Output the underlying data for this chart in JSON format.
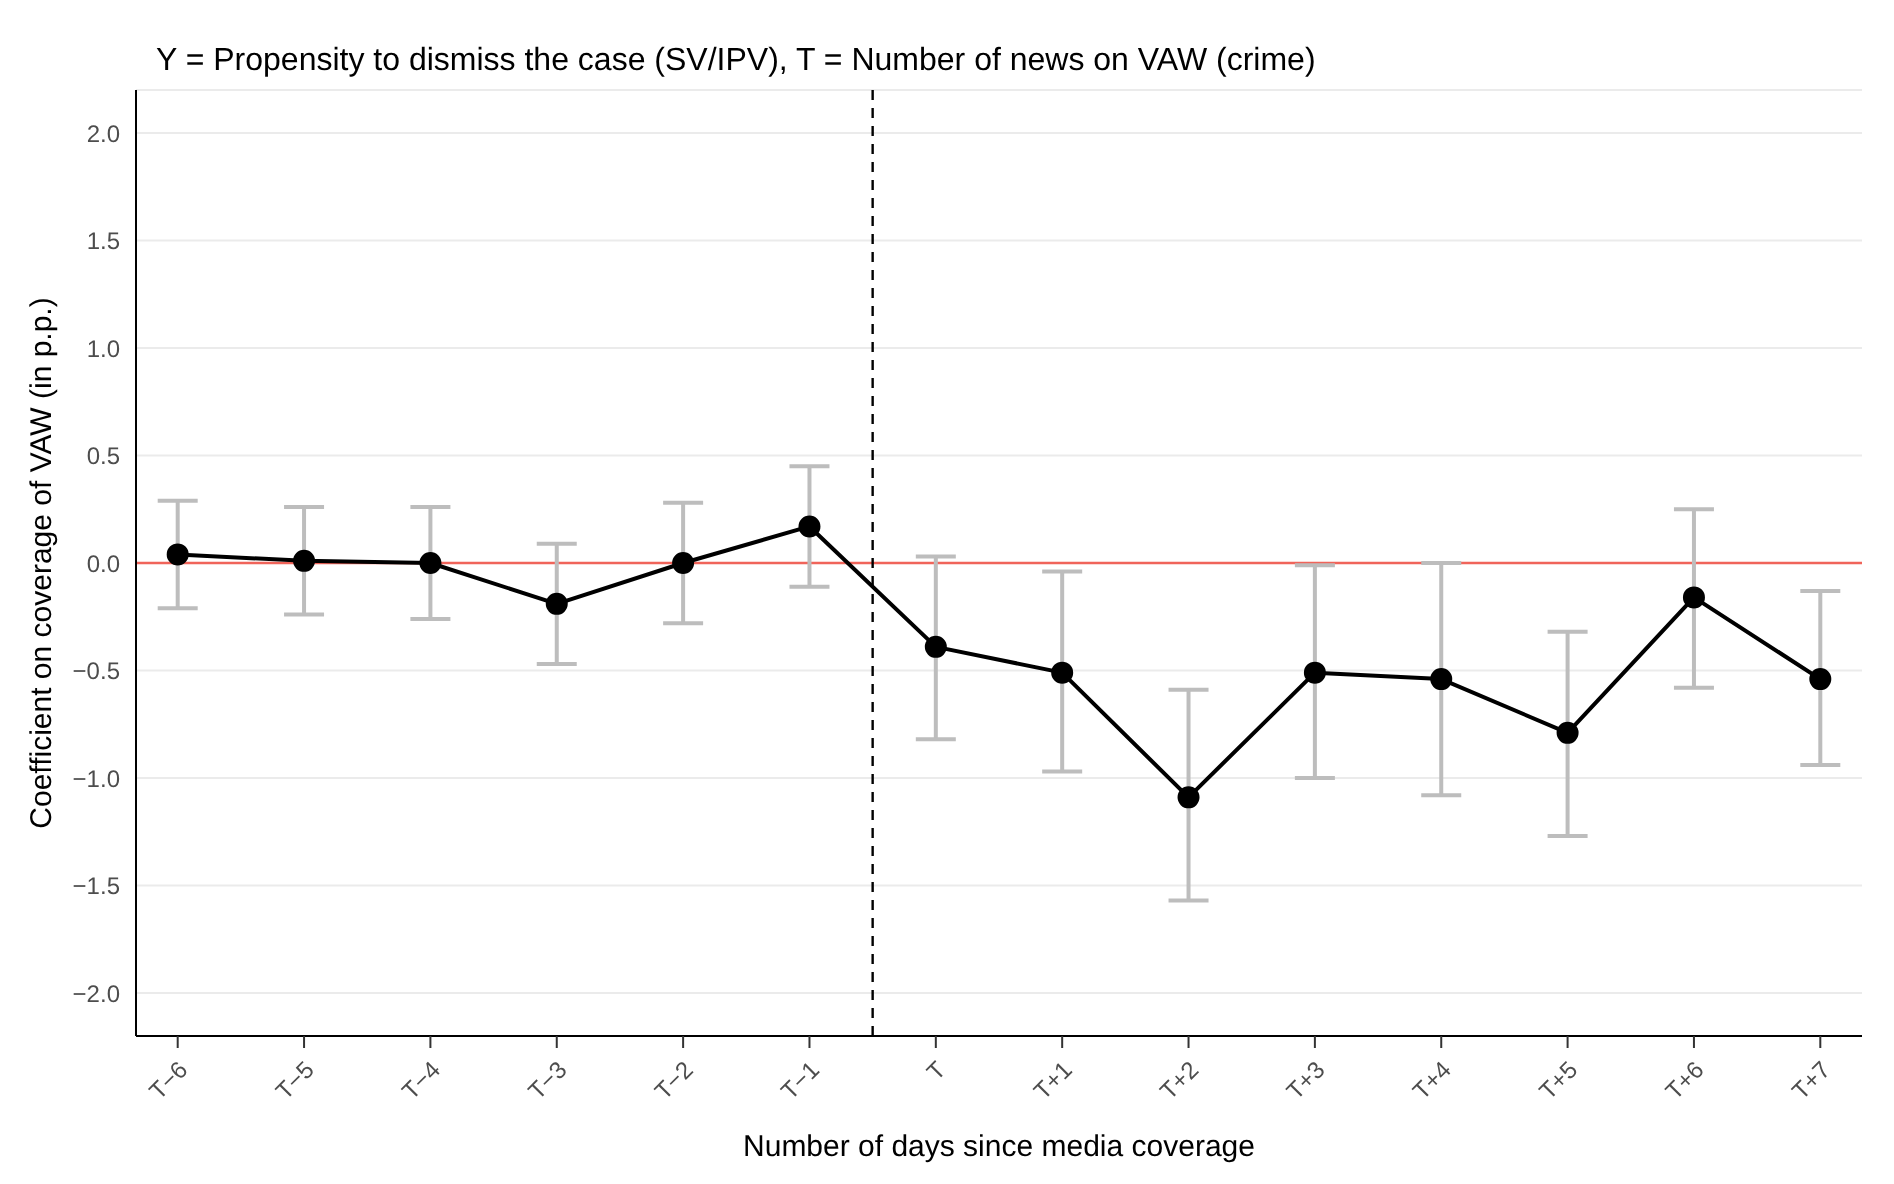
{
  "chart_data": {
    "type": "line",
    "title": "Y = Propensity to dismiss the case (SV/IPV), T = Number of news on VAW (crime)",
    "xlabel": "Number of days since media coverage",
    "ylabel": "Coefficient on coverage of VAW (in p.p.)",
    "categories": [
      "T−6",
      "T−5",
      "T−4",
      "T−3",
      "T−2",
      "T−1",
      "T",
      "T+1",
      "T+2",
      "T+3",
      "T+4",
      "T+5",
      "T+6",
      "T+7"
    ],
    "ylim": [
      -2.2,
      2.2
    ],
    "yticks": [
      {
        "value": -2,
        "label": "−2.0"
      },
      {
        "value": -1.5,
        "label": "−1.5"
      },
      {
        "value": -1,
        "label": "−1.0"
      },
      {
        "value": -0.5,
        "label": "−0.5"
      },
      {
        "value": 0,
        "label": "0.0"
      },
      {
        "value": 0.5,
        "label": "0.5"
      },
      {
        "value": 1,
        "label": "1.0"
      },
      {
        "value": 1.5,
        "label": "1.5"
      },
      {
        "value": 2,
        "label": "2.0"
      }
    ],
    "series": [
      {
        "color": "#000000",
        "values": [
          0.04,
          0.01,
          0.0,
          -0.19,
          0.0,
          0.17,
          -0.39,
          -0.51,
          -1.09,
          -0.51,
          -0.54,
          -0.79,
          -0.16,
          -0.54
        ],
        "errors": [
          [
            -0.21,
            0.29
          ],
          [
            -0.24,
            0.26
          ],
          [
            -0.26,
            0.26
          ],
          [
            -0.47,
            0.09
          ],
          [
            -0.28,
            0.28
          ],
          [
            -0.11,
            0.45
          ],
          [
            -0.82,
            0.03
          ],
          [
            -0.97,
            -0.04
          ],
          [
            -1.57,
            -0.59
          ],
          [
            -1.0,
            -0.01
          ],
          [
            -1.08,
            0.0
          ],
          [
            -1.27,
            -0.32
          ],
          [
            -0.58,
            0.25
          ],
          [
            -0.94,
            -0.13
          ]
        ]
      }
    ],
    "ref_lines": [
      {
        "axis": "y",
        "value": 0,
        "color": "#f0645a",
        "line_style": "solid"
      },
      {
        "axis": "x",
        "value": "T",
        "color": "#000000",
        "line_style": "dashed"
      }
    ],
    "grid": "y",
    "marker": "circle",
    "line_style": "solid"
  }
}
